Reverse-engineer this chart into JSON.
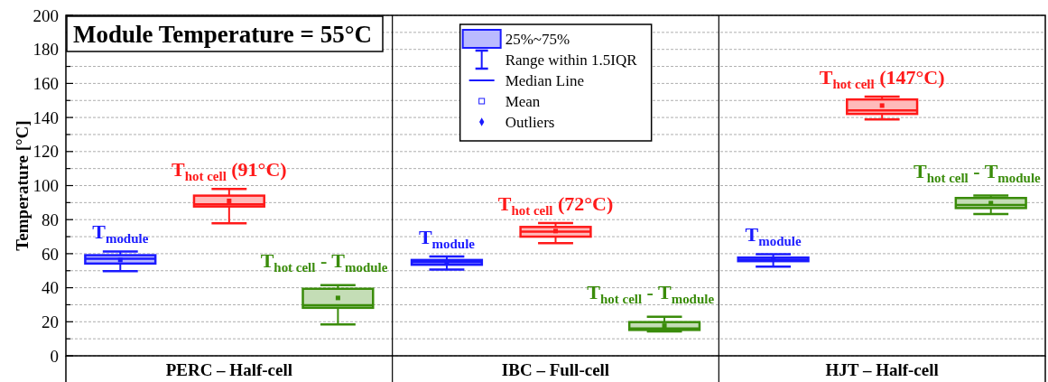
{
  "chart_data": {
    "type": "box",
    "title": "Module Temperature = 55°C",
    "ylabel": "Temperature [°C]",
    "categories": [
      "PERC – Half-cell",
      "IBC – Full-cell",
      "HJT – Half-cell"
    ],
    "ylim": [
      0,
      200
    ],
    "yticks": [
      0,
      {
        "value": 10,
        "label": null
      },
      20,
      {
        "value": 30,
        "label": null
      },
      40,
      {
        "value": 50,
        "label": null
      },
      60,
      {
        "value": 70,
        "label": null
      },
      80,
      {
        "value": 90,
        "label": null
      },
      100,
      {
        "value": 110,
        "label": null
      },
      120,
      {
        "value": 130,
        "label": null
      },
      140,
      {
        "value": 150,
        "label": null
      },
      160,
      {
        "value": 170,
        "label": null
      },
      180,
      {
        "value": 190,
        "label": null
      },
      200
    ],
    "grid": true,
    "series": [
      {
        "color": "#1a1aff",
        "boxes": [
          {
            "low": 49.8,
            "q1": 54.2,
            "median": 57,
            "q3": 59.1,
            "high": 61.3,
            "mean": 56.3
          },
          {
            "low": 50.7,
            "q1": 53.5,
            "median": 55,
            "q3": 56.3,
            "high": 58.3,
            "mean": 55
          },
          {
            "low": 52.4,
            "q1": 55.6,
            "median": 56.5,
            "q3": 57.7,
            "high": 59.7,
            "mean": 56.5
          }
        ]
      },
      {
        "color": "#ff1a1a",
        "boxes": [
          {
            "low": 77.8,
            "q1": 87.7,
            "median": 89,
            "q3": 94.1,
            "high": 98,
            "mean": 91
          },
          {
            "low": 66.2,
            "q1": 70,
            "median": 73,
            "q3": 75.7,
            "high": 78,
            "mean": 73.3
          },
          {
            "low": 138.9,
            "q1": 142.1,
            "median": 144.2,
            "q3": 150.6,
            "high": 152.3,
            "mean": 147
          }
        ]
      },
      {
        "color": "#3a8c0a",
        "boxes": [
          {
            "low": 18.5,
            "q1": 28.2,
            "median": 29.7,
            "q3": 39.4,
            "high": 41.5,
            "mean": 34
          },
          {
            "low": 14.3,
            "q1": 15.2,
            "median": 16,
            "q3": 19.8,
            "high": 23,
            "mean": 17.7
          },
          {
            "low": 83.3,
            "q1": 86.8,
            "median": 88.6,
            "q3": 92.7,
            "high": 94.1,
            "mean": 89.7
          }
        ]
      }
    ],
    "annotations": [
      "25%~75%",
      "Range within 1.5IQR",
      "Median Line",
      "Mean",
      "Outliers",
      "T$_{module}$",
      "T$_{hot cell}$ (91°C)",
      "T$_{hot cell}$ - T$_{module}$",
      "T$_{module}$",
      "T$_{hot cell}$ (72°C)",
      "T$_{hot cell}$ - T$_{module}$",
      "T$_{module}$",
      "T$_{hot cell}$ (147°C)",
      "T$_{hot cell}$ - T$_{module}$"
    ]
  }
}
